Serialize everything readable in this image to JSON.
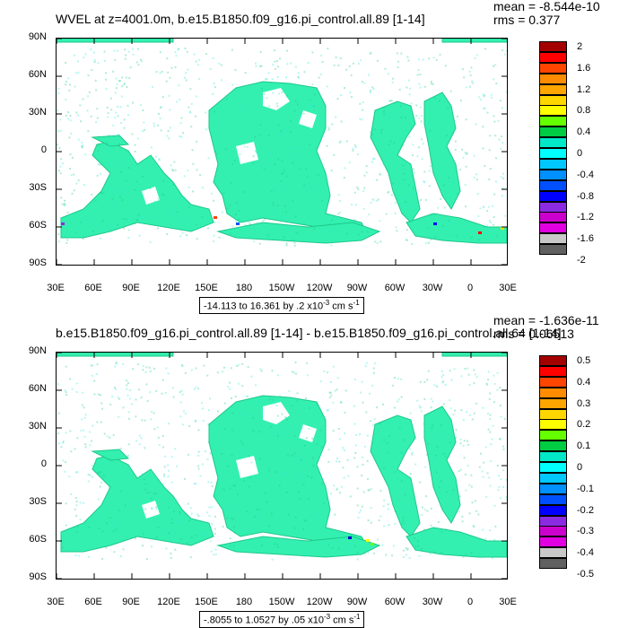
{
  "panels": [
    {
      "title": "WVEL at z=4001.0m, b.e15.B1850.f09_g16.pi_control.all.89 [1-14]",
      "mean_text": "mean = -8.544e-10",
      "rms_text": "rms = 0.377",
      "range_prefix": "-14.113 to 16.361 by .2 x10",
      "range_exp": "-3",
      "range_unit": " cm s",
      "range_unit_exp": "-1",
      "colorbar_labels": [
        "2",
        "1.6",
        "1.2",
        "0.8",
        "0.4",
        "0",
        "-0.4",
        "-0.8",
        "-1.2",
        "-1.6",
        "-2"
      ]
    },
    {
      "title": "b.e15.B1850.f09_g16.pi_control.all.89 [1-14] - b.e15.B1850.f09_g16.pi_control.all.64 [1-14]",
      "mean_text": "mean = -1.636e-11",
      "rms_text": "rms = 0.06513",
      "range_prefix": "-.8055 to 1.0527 by .05 x10",
      "range_exp": "-3",
      "range_unit": " cm s",
      "range_unit_exp": "-1",
      "colorbar_labels": [
        "0.5",
        "0.4",
        "0.3",
        "0.2",
        "0.1",
        "0",
        "-0.1",
        "-0.2",
        "-0.3",
        "-0.4",
        "-0.5"
      ]
    }
  ],
  "y_ticks": [
    "90N",
    "60N",
    "30N",
    "0",
    "30S",
    "60S",
    "90S"
  ],
  "x_ticks": [
    "30E",
    "60E",
    "90E",
    "120E",
    "150E",
    "180",
    "150W",
    "120W",
    "90W",
    "60W",
    "30W",
    "0",
    "30E"
  ],
  "colorbar_colors": [
    "#a50000",
    "#ff0000",
    "#ff4500",
    "#ff8c00",
    "#ffa500",
    "#ffd700",
    "#ffff00",
    "#66ff00",
    "#00cc44",
    "#00e8c8",
    "#00ffff",
    "#00c8ff",
    "#0090ff",
    "#0050ff",
    "#0000ff",
    "#8a2be2",
    "#cc00cc",
    "#e000e0",
    "#c8c8c8",
    "#606060"
  ],
  "colors": {
    "field": "#33f0b0",
    "field_dark": "#1ec88a",
    "cyan": "#2ae8e0",
    "highlight": "#ffe000",
    "deep": "#0000cc"
  }
}
